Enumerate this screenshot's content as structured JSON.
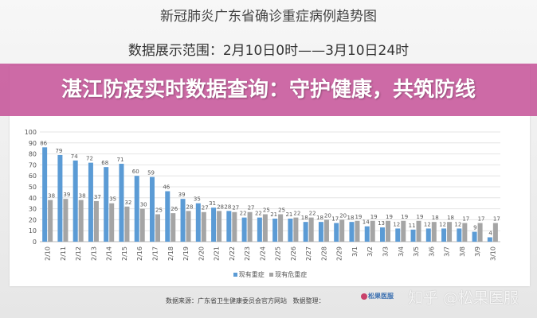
{
  "header": {
    "title": "新冠肺炎广东省确诊重症病例趋势图",
    "subtitle": "数据展示范围：2月10日0时——3月10日24时"
  },
  "banner": {
    "text": "湛江防疫实时数据查询：守护健康，共筑防线"
  },
  "footer": {
    "source": "数据来源：广东省卫生健康委员会官方网站",
    "organizer": "数据整理：",
    "logo_text": "松果医服",
    "watermark": "知乎 @松果医服"
  },
  "colors": {
    "series1": "#5b9bd5",
    "series2": "#a5a5a5",
    "banner": "#c4509a"
  },
  "chart_data": {
    "type": "bar",
    "title": "新冠肺炎广东省确诊重症病例趋势图",
    "xlabel": "",
    "ylabel": "",
    "ylim": [
      0,
      100
    ],
    "yticks": [
      0,
      10,
      20,
      30,
      40,
      50,
      60,
      70,
      80,
      90,
      100
    ],
    "grid": true,
    "legend": "bottom",
    "categories": [
      "2/10",
      "2/11",
      "2/12",
      "2/13",
      "2/14",
      "2/15",
      "2/16",
      "2/17",
      "2/18",
      "2/19",
      "2/20",
      "2/21",
      "2/22",
      "2/23",
      "2/24",
      "2/25",
      "2/26",
      "2/27",
      "2/28",
      "2/29",
      "3/1",
      "3/2",
      "3/3",
      "3/4",
      "3/5",
      "3/6",
      "3/7",
      "3/8",
      "3/9",
      "3/10"
    ],
    "series": [
      {
        "name": "现有重症",
        "values": [
          86,
          79,
          74,
          72,
          68,
          71,
          60,
          59,
          46,
          39,
          35,
          31,
          28,
          22,
          22,
          21,
          21,
          18,
          18,
          17,
          18,
          14,
          13,
          12,
          11,
          12,
          12,
          12,
          9,
          4
        ]
      },
      {
        "name": "现有危重症",
        "values": [
          38,
          39,
          38,
          37,
          35,
          32,
          30,
          25,
          26,
          28,
          27,
          28,
          27,
          27,
          25,
          25,
          22,
          22,
          20,
          20,
          19,
          19,
          19,
          19,
          19,
          18,
          18,
          17,
          17,
          17
        ]
      }
    ]
  }
}
